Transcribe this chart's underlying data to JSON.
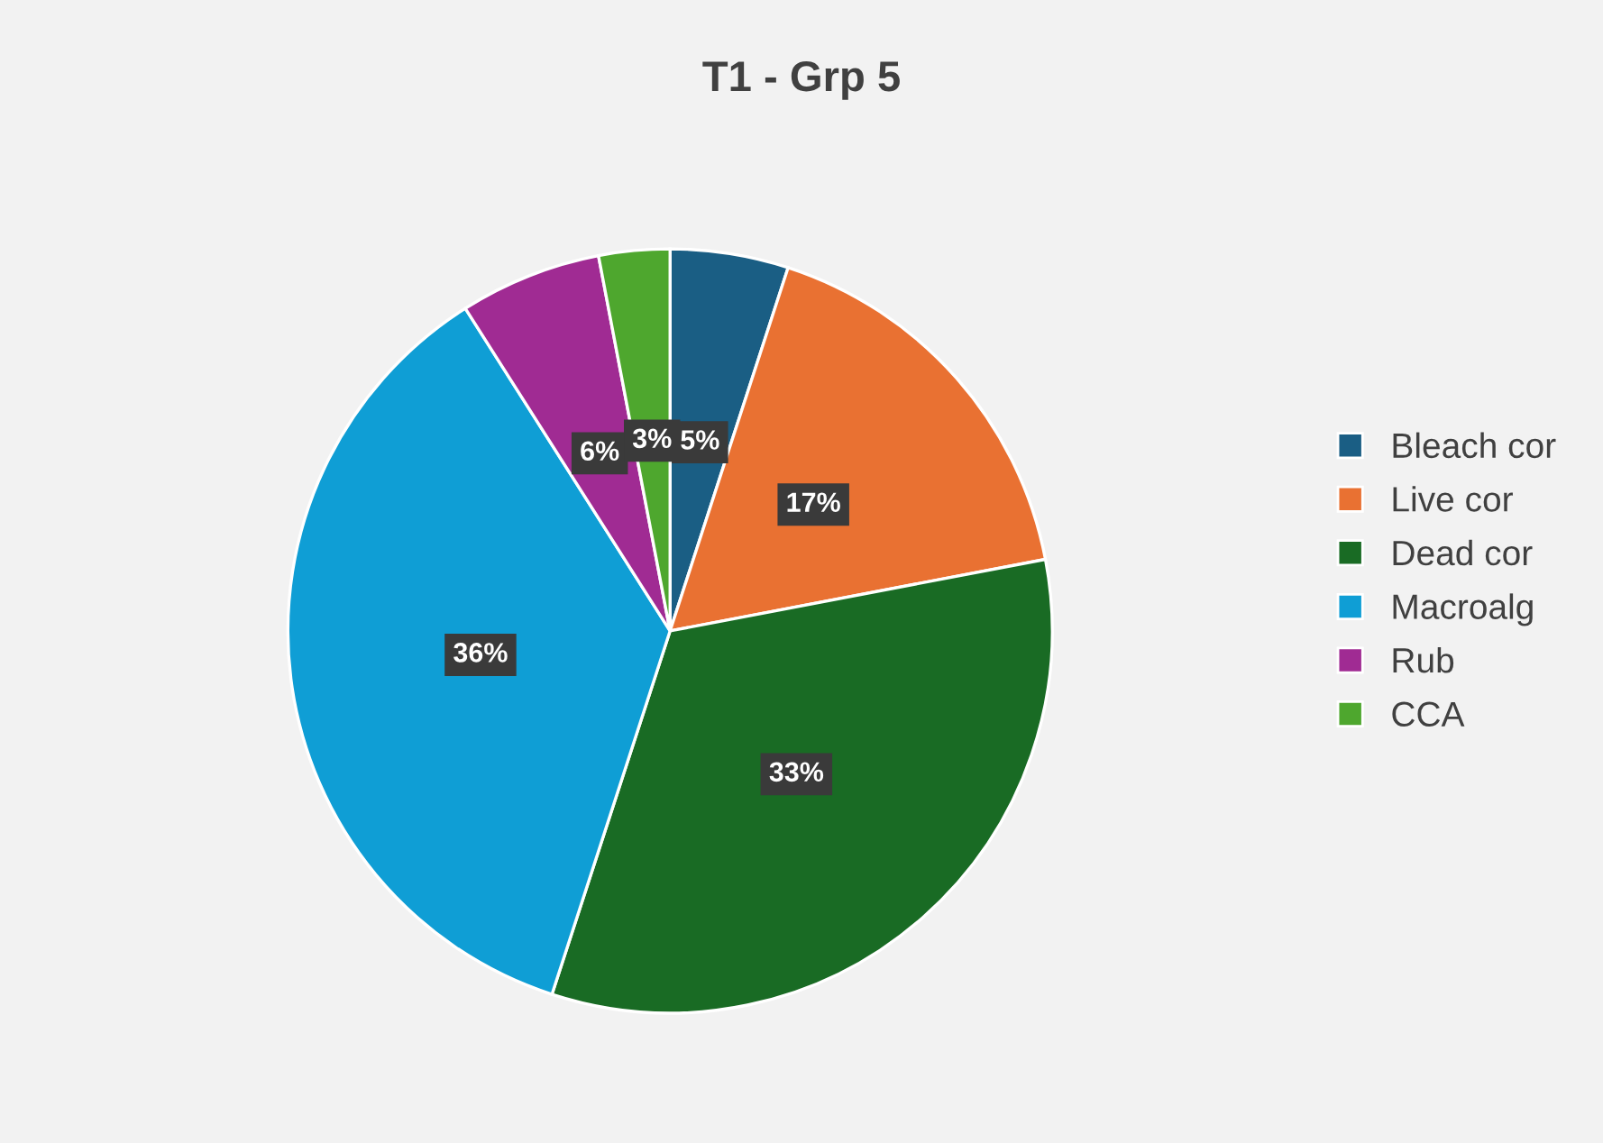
{
  "chart_data": {
    "type": "pie",
    "title": "T1 - Grp 5",
    "categories": [
      "Bleach cor",
      "Live cor",
      "Dead cor",
      "Macroalg",
      "Rub",
      "CCA"
    ],
    "values": [
      5,
      17,
      33,
      36,
      6,
      3
    ],
    "colors": [
      "#1a5e84",
      "#e97132",
      "#196b24",
      "#0f9ed5",
      "#a02b93",
      "#4ea72e"
    ],
    "value_labels": [
      "5%",
      "17%",
      "33%",
      "36%",
      "6%",
      "3%"
    ],
    "legend": "right"
  }
}
